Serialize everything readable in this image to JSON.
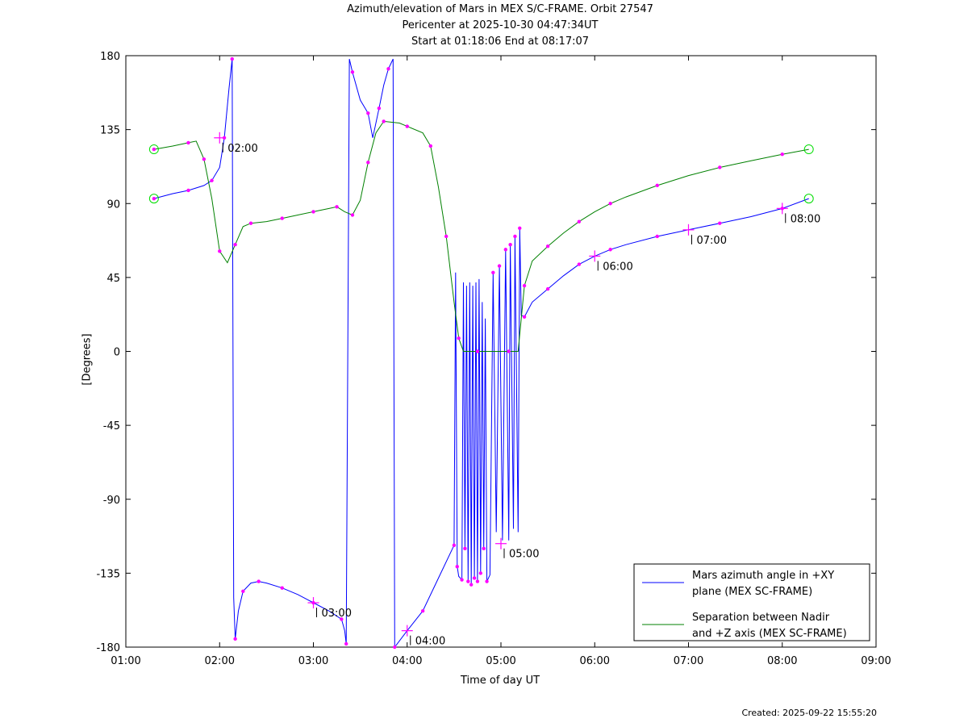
{
  "chart_data": {
    "type": "line",
    "title_lines": [
      "Azimuth/elevation of Mars in MEX S/C-FRAME.  Orbit 27547",
      "Pericenter at 2025-10-30 04:47:34UT",
      "Start at 01:18:06 End at 08:17:07"
    ],
    "xlabel": "Time of day UT",
    "ylabel": "[Degrees]",
    "xlim": [
      "01:00",
      "09:00"
    ],
    "ylim": [
      -180,
      180
    ],
    "x_ticks": [
      "01:00",
      "02:00",
      "03:00",
      "04:00",
      "05:00",
      "06:00",
      "07:00",
      "08:00",
      "09:00"
    ],
    "y_ticks": [
      180,
      135,
      90,
      45,
      0,
      -45,
      -90,
      -135,
      -180
    ],
    "legend_position": "bottom-right",
    "series": [
      {
        "name": "Mars azimuth angle in +XY plane (MEX SC-FRAME)",
        "color": "#0000ff",
        "points": [
          [
            "01:18",
            93
          ],
          [
            "01:30",
            96
          ],
          [
            "01:40",
            98
          ],
          [
            "01:50",
            101
          ],
          [
            "01:55",
            104
          ],
          [
            "02:00",
            112
          ],
          [
            "02:03",
            130
          ],
          [
            "02:06",
            160
          ],
          [
            "02:08",
            178
          ],
          [
            "02:09",
            -150
          ],
          [
            "02:10",
            -175
          ],
          [
            "02:12",
            -158
          ],
          [
            "02:15",
            -146
          ],
          [
            "02:20",
            -141
          ],
          [
            "02:25",
            -140
          ],
          [
            "02:30",
            -141
          ],
          [
            "02:40",
            -144
          ],
          [
            "02:50",
            -148
          ],
          [
            "03:00",
            -153
          ],
          [
            "03:10",
            -158
          ],
          [
            "03:18",
            -163
          ],
          [
            "03:20",
            -170
          ],
          [
            "03:21",
            -178
          ],
          [
            "03:23",
            178
          ],
          [
            "03:25",
            170
          ],
          [
            "03:30",
            153
          ],
          [
            "03:35",
            145
          ],
          [
            "03:38",
            130
          ],
          [
            "03:42",
            148
          ],
          [
            "03:45",
            162
          ],
          [
            "03:48",
            172
          ],
          [
            "03:51",
            178
          ],
          [
            "03:52",
            -180
          ],
          [
            "04:00",
            -170
          ],
          [
            "04:10",
            -158
          ],
          [
            "04:20",
            -138
          ],
          [
            "04:30",
            -118
          ],
          [
            "04:31",
            48
          ],
          [
            "04:32",
            -131
          ],
          [
            "04:33",
            -137
          ],
          [
            "04:35",
            -139
          ],
          [
            "04:36",
            42
          ],
          [
            "04:37",
            -120
          ],
          [
            "04:38",
            40
          ],
          [
            "04:39",
            -140
          ],
          [
            "04:40",
            42
          ],
          [
            "04:41",
            -142
          ],
          [
            "04:42",
            40
          ],
          [
            "04:43",
            -138
          ],
          [
            "04:44",
            42
          ],
          [
            "04:45",
            -140
          ],
          [
            "04:46",
            44
          ],
          [
            "04:47",
            -135
          ],
          [
            "04:48",
            30
          ],
          [
            "04:49",
            -120
          ],
          [
            "04:50",
            20
          ],
          [
            "04:51",
            -140
          ],
          [
            "04:53",
            -136
          ],
          [
            "04:55",
            48
          ],
          [
            "04:57",
            -110
          ],
          [
            "04:59",
            52
          ],
          [
            "05:01",
            -115
          ],
          [
            "05:03",
            62
          ],
          [
            "05:05",
            -115
          ],
          [
            "05:06",
            65
          ],
          [
            "05:08",
            -108
          ],
          [
            "05:09",
            70
          ],
          [
            "05:11",
            -110
          ],
          [
            "05:12",
            75
          ],
          [
            "05:13",
            22
          ],
          [
            "05:15",
            21
          ],
          [
            "05:20",
            30
          ],
          [
            "05:30",
            38
          ],
          [
            "05:40",
            46
          ],
          [
            "05:50",
            53
          ],
          [
            "06:00",
            58
          ],
          [
            "06:10",
            62
          ],
          [
            "06:20",
            65
          ],
          [
            "06:40",
            70
          ],
          [
            "07:00",
            74
          ],
          [
            "07:20",
            78
          ],
          [
            "07:40",
            82
          ],
          [
            "08:00",
            87
          ],
          [
            "08:17",
            93
          ]
        ]
      },
      {
        "name": "Separation between Nadir and +Z axis (MEX SC-FRAME)",
        "color": "#008000",
        "points": [
          [
            "01:18",
            123
          ],
          [
            "01:30",
            125
          ],
          [
            "01:40",
            127
          ],
          [
            "01:45",
            128
          ],
          [
            "01:50",
            117
          ],
          [
            "01:55",
            93
          ],
          [
            "02:00",
            61
          ],
          [
            "02:05",
            54
          ],
          [
            "02:10",
            65
          ],
          [
            "02:15",
            76
          ],
          [
            "02:20",
            78
          ],
          [
            "02:30",
            79
          ],
          [
            "02:40",
            81
          ],
          [
            "02:50",
            83
          ],
          [
            "03:00",
            85
          ],
          [
            "03:10",
            87
          ],
          [
            "03:15",
            88
          ],
          [
            "03:20",
            85
          ],
          [
            "03:25",
            83
          ],
          [
            "03:30",
            92
          ],
          [
            "03:35",
            115
          ],
          [
            "03:40",
            133
          ],
          [
            "03:45",
            140
          ],
          [
            "03:55",
            139
          ],
          [
            "04:00",
            137
          ],
          [
            "04:10",
            133
          ],
          [
            "04:15",
            125
          ],
          [
            "04:20",
            100
          ],
          [
            "04:25",
            70
          ],
          [
            "04:30",
            30
          ],
          [
            "04:33",
            8
          ],
          [
            "04:36",
            0
          ],
          [
            "04:45",
            0
          ],
          [
            "04:55",
            0
          ],
          [
            "05:05",
            0
          ],
          [
            "05:11",
            0
          ],
          [
            "05:15",
            40
          ],
          [
            "05:20",
            55
          ],
          [
            "05:30",
            64
          ],
          [
            "05:40",
            72
          ],
          [
            "05:50",
            79
          ],
          [
            "06:00",
            85
          ],
          [
            "06:10",
            90
          ],
          [
            "06:20",
            94
          ],
          [
            "06:40",
            101
          ],
          [
            "07:00",
            107
          ],
          [
            "07:20",
            112
          ],
          [
            "07:40",
            116
          ],
          [
            "08:00",
            120
          ],
          [
            "08:17",
            123
          ]
        ]
      }
    ],
    "annotations": [
      {
        "label": "02:00",
        "x": "02:00",
        "y": 130
      },
      {
        "label": "03:00",
        "x": "03:00",
        "y": -153
      },
      {
        "label": "04:00",
        "x": "04:00",
        "y": -170
      },
      {
        "label": "05:00",
        "x": "05:00",
        "y": -117
      },
      {
        "label": "06:00",
        "x": "06:00",
        "y": 58
      },
      {
        "label": "07:00",
        "x": "07:00",
        "y": 74
      },
      {
        "label": "08:00",
        "x": "08:00",
        "y": 87
      }
    ],
    "legend": [
      [
        "Mars azimuth angle in +XY",
        "plane (MEX SC-FRAME)"
      ],
      [
        "Separation between Nadir",
        "and +Z axis (MEX SC-FRAME)"
      ]
    ]
  },
  "footer": {
    "created": "Created: 2025-09-22 15:55:20"
  }
}
